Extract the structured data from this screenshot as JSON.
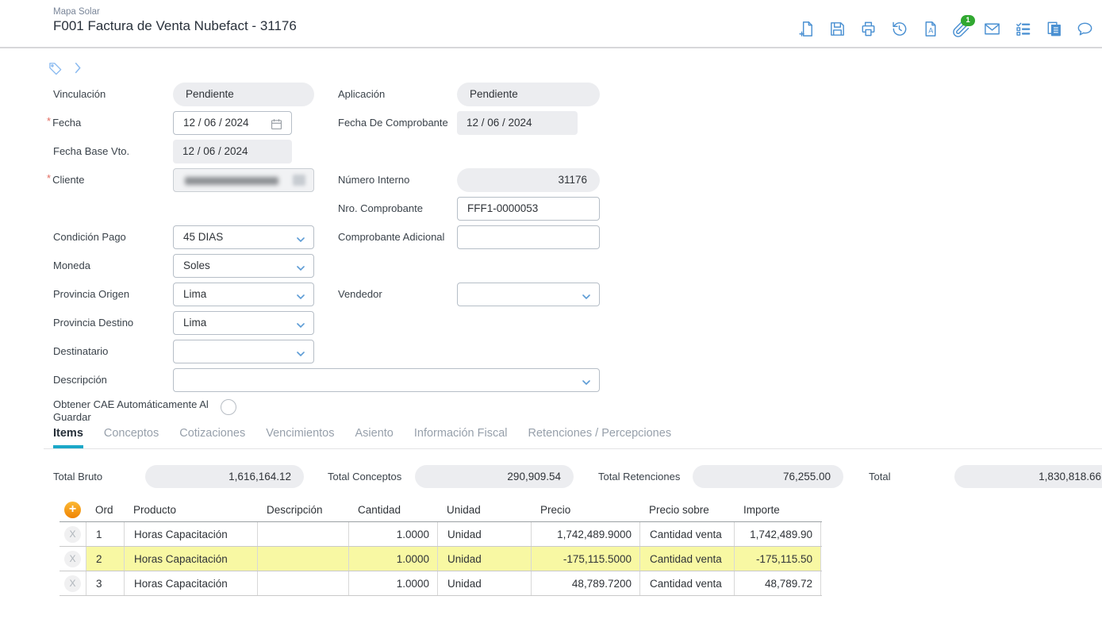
{
  "header": {
    "breadcrumb": "Mapa Solar",
    "title": "F001 Factura de Venta Nubefact - 31176",
    "toolbar": [
      {
        "name": "new-document-button",
        "icon": "new-document"
      },
      {
        "name": "save-button",
        "icon": "save"
      },
      {
        "name": "print-button",
        "icon": "print"
      },
      {
        "name": "history-button",
        "icon": "history"
      },
      {
        "name": "pdf-document-button",
        "icon": "letter-document"
      },
      {
        "name": "attachments-button",
        "icon": "paperclip",
        "badge": "1"
      },
      {
        "name": "email-button",
        "icon": "envelope"
      },
      {
        "name": "checklist-button",
        "icon": "checklist"
      },
      {
        "name": "copy-document-button",
        "icon": "copy"
      },
      {
        "name": "comments-button",
        "icon": "comment"
      }
    ]
  },
  "fields": {
    "vinculacion": {
      "label": "Vinculación",
      "value": "Pendiente"
    },
    "fecha": {
      "label": "Fecha",
      "required": "*",
      "value": "12 / 06 / 2024"
    },
    "fecha_base": {
      "label": "Fecha Base Vto.",
      "value": "12 / 06 / 2024"
    },
    "cliente": {
      "label": "Cliente",
      "required": "*",
      "value": ""
    },
    "condicion_pago": {
      "label": "Condición Pago",
      "value": "45 DIAS"
    },
    "moneda": {
      "label": "Moneda",
      "value": "Soles"
    },
    "provincia_origen": {
      "label": "Provincia Origen",
      "value": "Lima"
    },
    "provincia_destino": {
      "label": "Provincia Destino",
      "value": "Lima"
    },
    "destinatario": {
      "label": "Destinatario",
      "value": ""
    },
    "descripcion": {
      "label": "Descripción",
      "value": ""
    },
    "obtener_cae": {
      "label": "Obtener CAE Automáticamente Al Guardar",
      "checked": false
    },
    "aplicacion": {
      "label": "Aplicación",
      "value": "Pendiente"
    },
    "fecha_comprobante": {
      "label": "Fecha De Comprobante",
      "value": "12 / 06 / 2024"
    },
    "numero_interno": {
      "label": "Número Interno",
      "value": "31176"
    },
    "nro_comprobante": {
      "label": "Nro. Comprobante",
      "value": "FFF1-0000053"
    },
    "comprobante_adicional": {
      "label": "Comprobante Adicional",
      "value": ""
    },
    "vendedor": {
      "label": "Vendedor",
      "value": ""
    }
  },
  "tabs": [
    {
      "label": "Items",
      "active": true
    },
    {
      "label": "Conceptos",
      "active": false
    },
    {
      "label": "Cotizaciones",
      "active": false
    },
    {
      "label": "Vencimientos",
      "active": false
    },
    {
      "label": "Asiento",
      "active": false
    },
    {
      "label": "Información Fiscal",
      "active": false
    },
    {
      "label": "Retenciones / Percepciones",
      "active": false
    }
  ],
  "totals": [
    {
      "label": "Total Bruto",
      "value": "1,616,164.12"
    },
    {
      "label": "Total Conceptos",
      "value": "290,909.54"
    },
    {
      "label": "Total Retenciones",
      "value": "76,255.00"
    },
    {
      "label": "Total",
      "value": "1,830,818.66"
    }
  ],
  "items_table": {
    "add_button": "+",
    "delete_button": "X",
    "columns": [
      "Ord",
      "Producto",
      "Descripción",
      "Cantidad",
      "Unidad",
      "Precio",
      "Precio sobre",
      "Importe"
    ],
    "rows": [
      {
        "ord": "1",
        "producto": "Horas Capacitación",
        "descripcion": "",
        "cantidad": "1.0000",
        "unidad": "Unidad",
        "precio": "1,742,489.9000",
        "precio_sobre": "Cantidad venta",
        "importe": "1,742,489.90",
        "highlighted": false
      },
      {
        "ord": "2",
        "producto": "Horas Capacitación",
        "descripcion": "",
        "cantidad": "1.0000",
        "unidad": "Unidad",
        "precio": "-175,115.5000",
        "precio_sobre": "Cantidad venta",
        "importe": "-175,115.50",
        "highlighted": true
      },
      {
        "ord": "3",
        "producto": "Horas Capacitación",
        "descripcion": "",
        "cantidad": "1.0000",
        "unidad": "Unidad",
        "precio": "48,789.7200",
        "precio_sobre": "Cantidad venta",
        "importe": "48,789.72",
        "highlighted": false
      }
    ]
  },
  "colors": {
    "icon_blue": "#4a90d2",
    "tab_active_underline": "#1ba8c8",
    "badge_green": "#31a831",
    "row_highlight": "#f8f8a3",
    "add_button_orange": "#f08300",
    "readonly_grey": "#ecedf0",
    "required_red": "#e26a5f"
  }
}
